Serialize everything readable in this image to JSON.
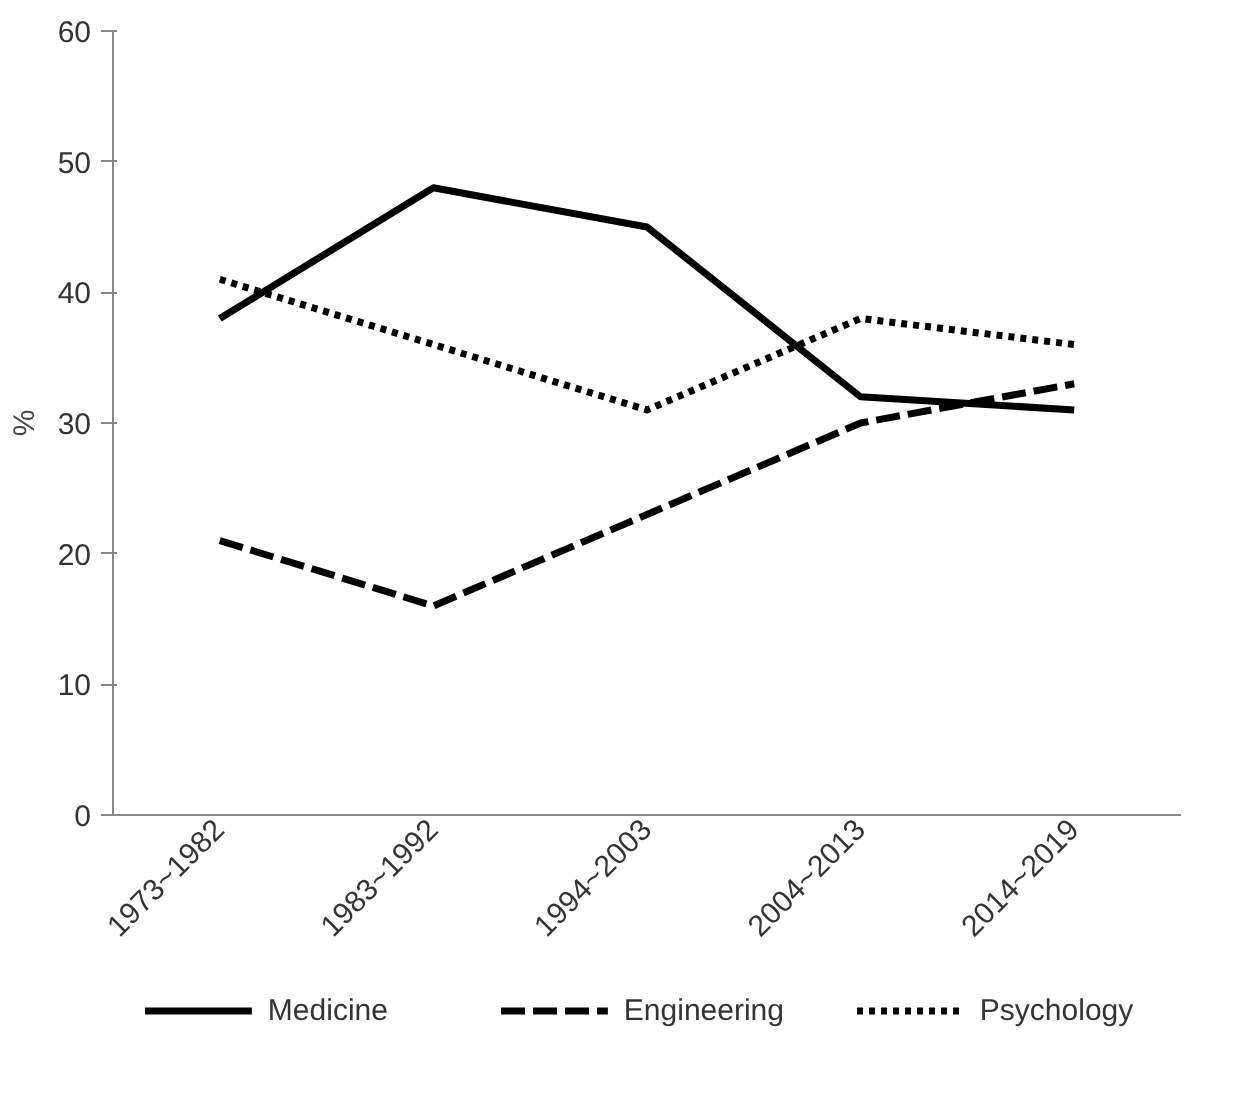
{
  "chart_data": {
    "type": "line",
    "ylabel": "%",
    "categories": [
      "1973~1982",
      "1983~1992",
      "1994~2003",
      "2004~2013",
      "2014~2019"
    ],
    "ylim": [
      0,
      60
    ],
    "yticks": [
      0,
      10,
      20,
      30,
      40,
      50,
      60
    ],
    "grid": false,
    "legend": "bottom",
    "marker": "none",
    "series": [
      {
        "name": "Medicine",
        "color": "#000000",
        "line_style": "solid",
        "values": [
          38,
          48,
          45,
          32,
          31
        ]
      },
      {
        "name": "Engineering",
        "color": "#000000",
        "line_style": "dashed",
        "values": [
          21,
          16,
          23,
          30,
          33
        ]
      },
      {
        "name": "Psychology",
        "color": "#000000",
        "line_style": "dotted",
        "values": [
          41,
          36,
          31,
          38,
          36
        ]
      }
    ]
  }
}
